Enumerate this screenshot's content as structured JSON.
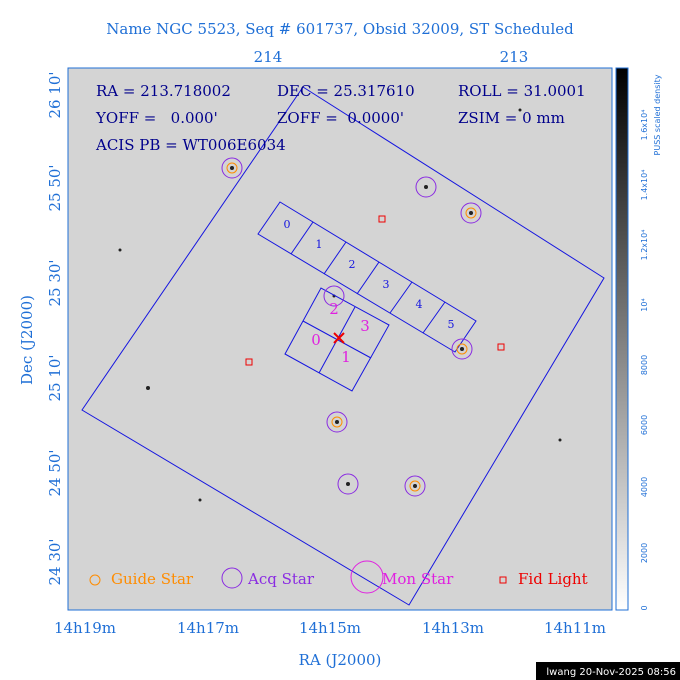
{
  "title": "Name NGC 5523, Seq # 601737, Obsid 32009, ST Scheduled",
  "top_ticks": [
    "214",
    "213"
  ],
  "info": [
    "RA = 213.718002",
    "DEC = 25.317610",
    "ROLL = 31.0001",
    "YOFF =   0.000'",
    "ZOFF =  0.0000'",
    "ZSIM = 0 mm",
    "ACIS PB = WT006E6034"
  ],
  "acis_s_chips": [
    "0",
    "1",
    "2",
    "3",
    "4",
    "5"
  ],
  "acis_i_chips": [
    "0",
    "1",
    "2",
    "3"
  ],
  "y_ticks": [
    "26 10'",
    "25 50'",
    "25 30'",
    "25 10'",
    "24 50'",
    "24 30'"
  ],
  "y_label": "Dec (J2000)",
  "x_ticks": [
    "14h19m",
    "14h17m",
    "14h15m",
    "14h13m",
    "14h11m"
  ],
  "x_label": "RA (J2000)",
  "legend": [
    "Guide Star",
    "Acq Star",
    "Mon Star",
    "Fid Light"
  ],
  "colorbar_ticks": [
    "0",
    "2000",
    "4000",
    "6000",
    "8000",
    "10⁴",
    "1.2x10⁴",
    "1.4x10⁴",
    "1.6x10⁴"
  ],
  "colorbar_label": "PUSS scaled density",
  "footer": "lwang 20-Nov-2025 08:56"
}
